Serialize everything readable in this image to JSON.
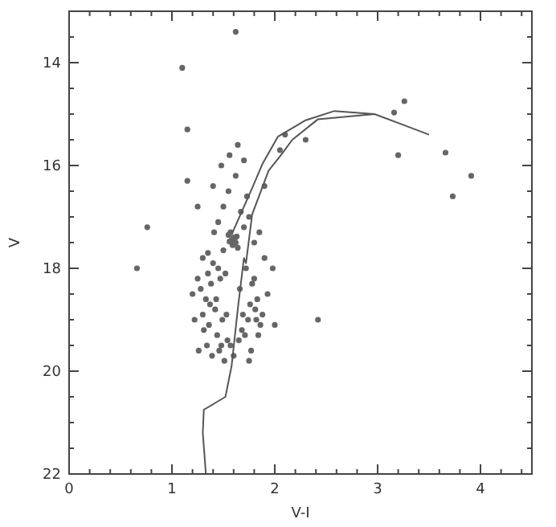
{
  "chart_data": {
    "type": "scatter",
    "xlabel": "V-I",
    "ylabel": "V",
    "xlim": [
      0,
      4.5
    ],
    "ylim": [
      22,
      13
    ],
    "xticks": [
      0,
      {
        "value": 0.2,
        "label": null
      },
      {
        "value": 0.4,
        "label": null
      },
      {
        "value": 0.6,
        "label": null
      },
      {
        "value": 0.8,
        "label": null
      },
      1,
      {
        "value": 1.2,
        "label": null
      },
      {
        "value": 1.4,
        "label": null
      },
      {
        "value": 1.6,
        "label": null
      },
      {
        "value": 1.8,
        "label": null
      },
      2,
      {
        "value": 2.2,
        "label": null
      },
      {
        "value": 2.4,
        "label": null
      },
      {
        "value": 2.6,
        "label": null
      },
      {
        "value": 2.8,
        "label": null
      },
      3,
      {
        "value": 3.2,
        "label": null
      },
      {
        "value": 3.4,
        "label": null
      },
      {
        "value": 3.6,
        "label": null
      },
      {
        "value": 3.8,
        "label": null
      },
      4,
      {
        "value": 4.2,
        "label": null
      },
      {
        "value": 4.4,
        "label": null
      }
    ],
    "yticks": [
      {
        "value": 13.5,
        "label": null
      },
      14,
      {
        "value": 14.5,
        "label": null
      },
      {
        "value": 15,
        "label": null
      },
      {
        "value": 15.5,
        "label": null
      },
      16,
      {
        "value": 16.5,
        "label": null
      },
      {
        "value": 17,
        "label": null
      },
      {
        "value": 17.5,
        "label": null
      },
      18,
      {
        "value": 18.5,
        "label": null
      },
      {
        "value": 19,
        "label": null
      },
      {
        "value": 19.5,
        "label": null
      },
      20,
      {
        "value": 20.5,
        "label": null
      },
      {
        "value": 21,
        "label": null
      },
      {
        "value": 21.5,
        "label": null
      },
      22
    ],
    "marker": "circle",
    "grid": false,
    "series": [
      {
        "color": "#666666",
        "x": [
          1.1,
          1.15,
          3.16,
          3.26,
          3.91,
          3.73,
          3.2,
          2.42,
          0.66,
          0.76,
          1.62,
          3.66,
          1.98,
          2.0,
          1.75,
          1.55,
          1.58,
          1.6,
          1.62,
          1.57,
          1.63,
          1.59,
          1.61,
          1.56,
          1.64,
          1.3,
          1.35,
          1.25,
          1.4,
          1.45,
          1.5,
          1.7,
          1.75,
          1.8,
          1.85,
          1.9,
          1.2,
          1.28,
          1.33,
          1.38,
          1.42,
          1.47,
          1.52,
          1.66,
          1.72,
          1.78,
          1.83,
          1.88,
          1.93,
          1.22,
          1.31,
          1.36,
          1.44,
          1.49,
          1.54,
          1.68,
          1.74,
          1.81,
          1.86,
          1.26,
          1.34,
          1.39,
          1.46,
          1.51,
          1.57,
          1.65,
          1.71,
          1.77,
          1.84,
          1.3,
          1.37,
          1.43,
          1.48,
          1.53,
          1.6,
          1.69,
          1.76,
          1.82,
          1.41,
          1.45,
          1.5,
          1.55,
          1.62,
          1.67,
          1.73,
          1.4,
          1.48,
          1.56,
          1.64,
          1.7,
          2.1,
          2.3,
          1.15,
          1.25,
          1.9,
          2.05,
          1.35,
          1.8
        ],
        "values": [
          14.1,
          15.3,
          14.97,
          14.75,
          16.2,
          16.6,
          15.8,
          19.0,
          18.0,
          17.2,
          13.4,
          15.75,
          18.0,
          19.1,
          19.8,
          17.35,
          17.45,
          17.4,
          17.5,
          17.3,
          17.38,
          17.55,
          17.42,
          17.48,
          17.6,
          17.8,
          17.7,
          18.2,
          17.9,
          18.0,
          17.65,
          17.2,
          17.0,
          17.5,
          17.3,
          17.8,
          18.5,
          18.4,
          18.6,
          18.3,
          18.8,
          18.2,
          18.1,
          18.4,
          18.0,
          18.3,
          18.6,
          18.9,
          18.5,
          19.0,
          19.2,
          19.1,
          19.3,
          19.0,
          19.4,
          19.2,
          19.0,
          18.8,
          19.1,
          19.6,
          19.5,
          19.7,
          19.6,
          19.8,
          19.5,
          19.4,
          19.3,
          19.6,
          19.3,
          18.9,
          18.7,
          18.6,
          19.5,
          18.9,
          19.7,
          18.9,
          18.7,
          19.0,
          17.3,
          17.1,
          16.8,
          16.5,
          16.2,
          16.9,
          16.6,
          16.4,
          16.0,
          15.8,
          15.6,
          15.9,
          15.4,
          15.5,
          16.3,
          16.8,
          16.4,
          15.7,
          18.1,
          18.2
        ]
      },
      {
        "type": "line",
        "marker": "none",
        "color": "#555555",
        "x": [
          1.33,
          1.3,
          1.31,
          1.52,
          1.58,
          1.64,
          1.7,
          1.72,
          1.78,
          1.94,
          2.06,
          2.17,
          2.42,
          2.97,
          3.5
        ],
        "values": [
          22,
          21.2,
          20.75,
          20.5,
          19.9,
          18.8,
          17.8,
          17.9,
          16.95,
          16.1,
          15.8,
          15.5,
          15.1,
          15.0,
          15.4
        ]
      },
      {
        "type": "line",
        "marker": "none",
        "color": "#555555",
        "x": [
          1.59,
          1.78,
          1.88,
          2.03,
          2.3,
          2.58,
          2.97
        ],
        "values": [
          17.3,
          16.44,
          15.97,
          15.44,
          15.12,
          14.94,
          15.0
        ]
      }
    ]
  }
}
